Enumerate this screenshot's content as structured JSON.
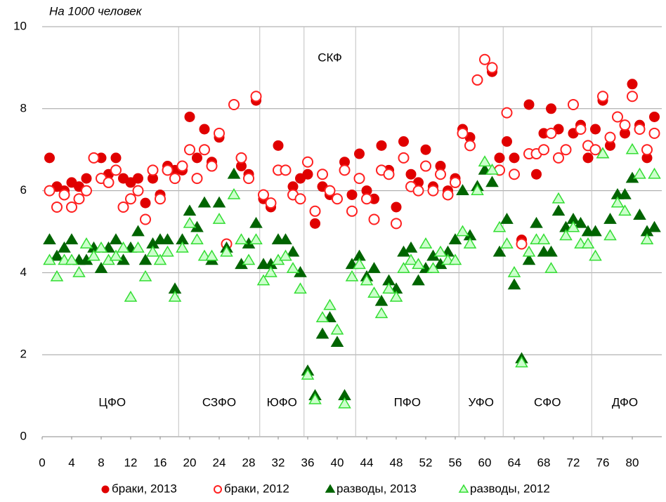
{
  "chart_data": {
    "type": "scatter",
    "ylabel": "На 1000 человек",
    "x": [
      1,
      2,
      3,
      4,
      5,
      6,
      7,
      8,
      9,
      10,
      11,
      12,
      13,
      14,
      15,
      16,
      17,
      18,
      19,
      20,
      21,
      22,
      23,
      24,
      25,
      26,
      27,
      28,
      29,
      30,
      31,
      32,
      33,
      34,
      35,
      36,
      37,
      38,
      39,
      40,
      41,
      42,
      43,
      44,
      45,
      46,
      47,
      48,
      49,
      50,
      51,
      52,
      53,
      54,
      55,
      56,
      57,
      58,
      59,
      60,
      61,
      62,
      63,
      64,
      65,
      66,
      67,
      68,
      69,
      70,
      71,
      72,
      73,
      74,
      75,
      76,
      77,
      78,
      79,
      80,
      81,
      82,
      83
    ],
    "series": [
      {
        "name": "браки, 2013",
        "color": "#e00000",
        "marker": "circle",
        "filled": true,
        "values": [
          6.8,
          6.1,
          6.0,
          6.2,
          6.1,
          6.3,
          6.8,
          6.8,
          6.4,
          6.8,
          6.3,
          6.2,
          6.3,
          5.7,
          6.3,
          5.9,
          6.6,
          6.5,
          6.5,
          7.8,
          6.8,
          7.5,
          6.7,
          7.3,
          4.7,
          8.1,
          6.6,
          6.4,
          8.2,
          5.8,
          5.6,
          7.1,
          6.5,
          6.1,
          6.3,
          6.4,
          5.2,
          6.1,
          5.9,
          5.8,
          6.7,
          5.9,
          6.9,
          6.0,
          5.8,
          7.1,
          6.5,
          5.6,
          7.2,
          6.4,
          6.2,
          7.0,
          6.1,
          6.6,
          6.0,
          6.3,
          7.5,
          7.3,
          8.7,
          9.2,
          8.9,
          6.8,
          7.2,
          6.8,
          4.8,
          8.1,
          6.4,
          7.4,
          8.0,
          7.5,
          7.0,
          7.4,
          7.6,
          6.8,
          7.5,
          8.2,
          7.1,
          7.8,
          7.4,
          8.6,
          7.6,
          6.8,
          7.8
        ]
      },
      {
        "name": "браки, 2012",
        "color": "#ff2020",
        "marker": "circle",
        "filled": false,
        "values": [
          6.0,
          5.6,
          5.9,
          5.6,
          5.8,
          6.0,
          6.8,
          6.3,
          6.2,
          6.5,
          5.6,
          5.8,
          6.0,
          5.3,
          6.5,
          5.8,
          6.5,
          6.3,
          6.6,
          7.0,
          6.3,
          7.0,
          6.6,
          7.4,
          4.7,
          8.1,
          6.8,
          6.3,
          8.3,
          5.9,
          5.7,
          6.5,
          6.5,
          5.9,
          5.8,
          6.7,
          5.5,
          6.4,
          6.0,
          5.8,
          6.5,
          5.5,
          6.3,
          5.8,
          5.3,
          6.5,
          6.4,
          5.2,
          6.8,
          6.1,
          6.0,
          6.6,
          6.0,
          6.4,
          5.9,
          6.2,
          7.4,
          7.1,
          8.7,
          9.2,
          9.0,
          6.5,
          7.9,
          6.4,
          4.7,
          6.9,
          6.9,
          7.0,
          7.4,
          6.8,
          7.0,
          8.1,
          7.5,
          7.1,
          7.0,
          8.3,
          7.3,
          7.8,
          7.6,
          8.3,
          7.5,
          7.0,
          7.4
        ]
      },
      {
        "name": "разводы, 2013",
        "color": "#006400",
        "marker": "triangle",
        "filled": true,
        "values": [
          4.8,
          4.4,
          4.6,
          4.8,
          4.3,
          4.3,
          4.6,
          4.1,
          4.6,
          4.8,
          4.3,
          4.6,
          5.0,
          4.3,
          4.7,
          4.8,
          4.8,
          3.6,
          4.8,
          5.5,
          5.1,
          5.7,
          4.3,
          5.7,
          4.6,
          6.4,
          4.2,
          4.7,
          5.2,
          4.2,
          4.2,
          4.8,
          4.8,
          4.5,
          4.0,
          1.6,
          1.0,
          2.5,
          2.9,
          2.3,
          1.0,
          4.2,
          4.4,
          3.9,
          4.1,
          3.3,
          3.8,
          3.6,
          4.5,
          4.6,
          3.8,
          4.1,
          4.4,
          4.2,
          4.5,
          4.8,
          6.0,
          4.9,
          6.1,
          6.5,
          6.2,
          4.5,
          5.3,
          3.7,
          1.9,
          4.3,
          5.2,
          4.5,
          4.5,
          5.5,
          5.1,
          5.3,
          5.2,
          5.0,
          5.0,
          6.9,
          5.3,
          5.9,
          5.9,
          6.3,
          5.4,
          5.0,
          5.1
        ]
      },
      {
        "name": "разводы, 2012",
        "color": "#33dd33",
        "marker": "triangle",
        "filled": false,
        "values": [
          4.3,
          3.9,
          4.3,
          4.3,
          4.0,
          4.7,
          4.4,
          4.6,
          4.3,
          4.4,
          4.6,
          3.4,
          4.6,
          3.9,
          4.5,
          4.3,
          4.5,
          3.4,
          4.6,
          5.2,
          4.8,
          4.4,
          4.4,
          5.3,
          4.5,
          5.9,
          4.8,
          4.3,
          4.8,
          3.8,
          4.0,
          4.3,
          4.4,
          4.1,
          3.6,
          1.5,
          0.9,
          2.9,
          3.2,
          2.6,
          0.8,
          3.9,
          4.2,
          3.8,
          3.5,
          3.0,
          3.6,
          3.4,
          4.1,
          4.3,
          4.2,
          4.7,
          4.1,
          4.5,
          4.3,
          4.3,
          5.0,
          4.7,
          6.0,
          6.7,
          6.5,
          5.1,
          4.7,
          4.0,
          1.8,
          4.5,
          4.8,
          4.8,
          4.1,
          5.8,
          4.9,
          5.1,
          4.7,
          4.7,
          4.4,
          6.9,
          4.9,
          5.7,
          5.5,
          7.0,
          6.4,
          4.8,
          6.4
        ]
      }
    ],
    "districts": [
      {
        "label": "ЦФО",
        "first": 1,
        "last": 18,
        "position": "bottom"
      },
      {
        "label": "СЗФО",
        "first": 19,
        "last": 29,
        "position": "bottom"
      },
      {
        "label": "ЮФО",
        "first": 30,
        "last": 35,
        "position": "bottom"
      },
      {
        "label": "СКФ",
        "first": 36,
        "last": 42,
        "position": "top"
      },
      {
        "label": "ПФО",
        "first": 43,
        "last": 56,
        "position": "bottom"
      },
      {
        "label": "УФО",
        "first": 57,
        "last": 62,
        "position": "bottom"
      },
      {
        "label": "СФО",
        "first": 63,
        "last": 74,
        "position": "bottom"
      },
      {
        "label": "ДФО",
        "first": 75,
        "last": 83,
        "position": "bottom"
      }
    ],
    "xlim": [
      0,
      84
    ],
    "xticks": [
      0,
      4,
      8,
      12,
      16,
      20,
      24,
      28,
      32,
      36,
      40,
      44,
      48,
      52,
      56,
      60,
      64,
      68,
      72,
      76,
      80
    ],
    "ylim": [
      0,
      10
    ],
    "yticks": [
      0,
      2,
      4,
      6,
      8,
      10
    ],
    "grid": true,
    "legend": "bottom"
  }
}
